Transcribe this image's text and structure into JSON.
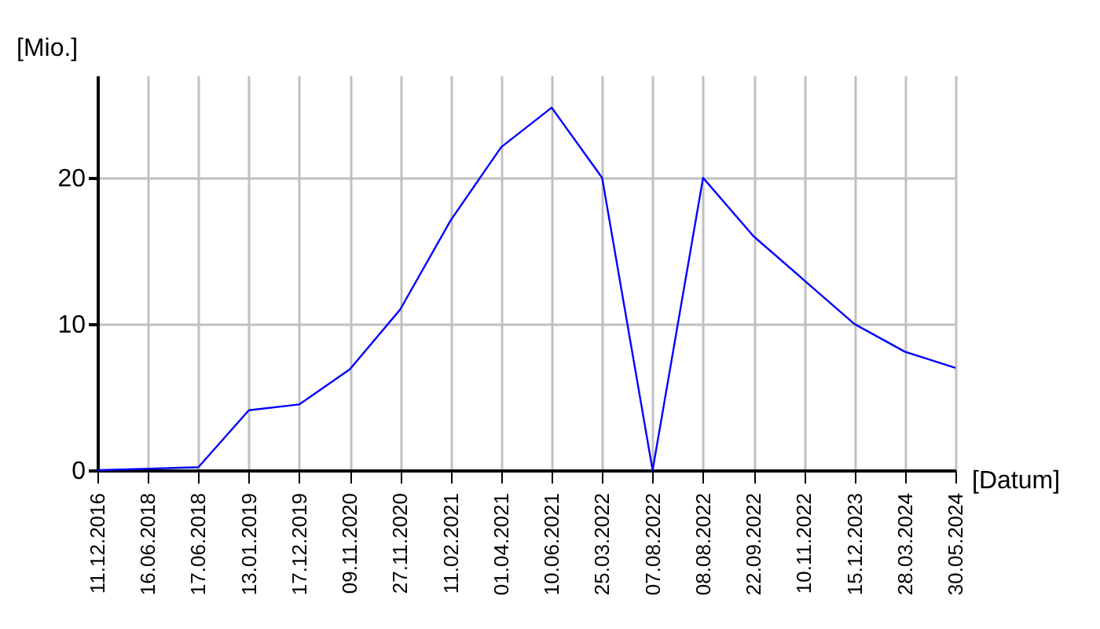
{
  "chart_data": {
    "type": "line",
    "xlabel": "[Datum]",
    "ylabel": "[Mio.]",
    "categories": [
      "11.12.2016",
      "16.06.2018",
      "17.06.2018",
      "13.01.2019",
      "17.12.2019",
      "09.11.2020",
      "27.11.2020",
      "11.02.2021",
      "01.04.2021",
      "10.06.2021",
      "25.03.2022",
      "07.08.2022",
      "08.08.2022",
      "22.09.2022",
      "10.11.2022",
      "15.12.2023",
      "28.03.2024",
      "30.05.2024"
    ],
    "series": [
      {
        "color": "#0000ff",
        "values": [
          0,
          0.1,
          0.2,
          4.1,
          4.5,
          6.9,
          11,
          17.1,
          22.1,
          24.8,
          20,
          0,
          20,
          16,
          13,
          10,
          8.1,
          7
        ]
      }
    ],
    "ylim": [
      0,
      27
    ],
    "yticks": [
      0,
      10,
      20
    ],
    "grid": true
  }
}
